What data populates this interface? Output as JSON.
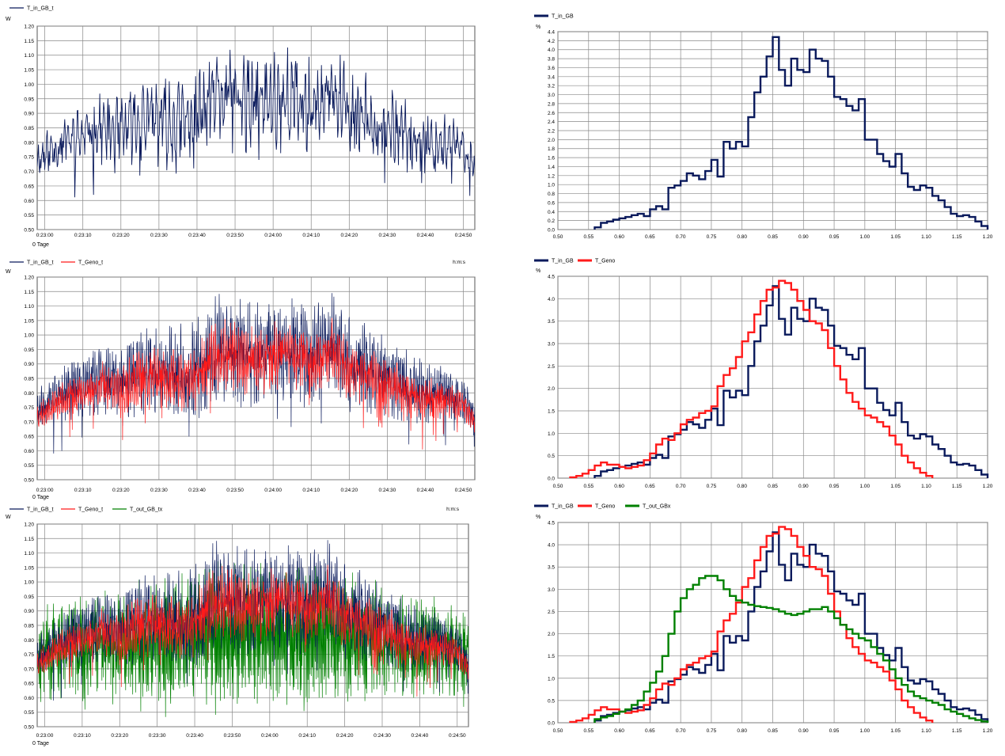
{
  "chart_data": [
    {
      "type": "line",
      "panel": "ts1",
      "ylabel": "W",
      "xlabel": "h:m:s",
      "xlabel_extra": "0 Tage",
      "ylim": [
        0.5,
        1.2
      ],
      "yticks": [
        "0.50",
        "0.55",
        "0.60",
        "0.65",
        "0.70",
        "0.75",
        "0.80",
        "0.85",
        "0.90",
        "0.95",
        "1.00",
        "1.05",
        "1.10",
        "1.15",
        "1.20"
      ],
      "xticks": [
        "0:23:00",
        "0:23:10",
        "0:23:20",
        "0:23:30",
        "0:23:40",
        "0:23:50",
        "0:24:00",
        "0:24:10",
        "0:24:20",
        "0:24:30",
        "0:24:40",
        "0:24:50"
      ],
      "x_range_seconds": [
        1378,
        1493
      ],
      "grid": true,
      "legend_position": "top-left",
      "series": [
        {
          "name": "T_in_GB_t",
          "color": "#0a1a5c"
        }
      ]
    },
    {
      "type": "histogram",
      "panel": "h1",
      "ylabel": "%",
      "xlim": [
        0.5,
        1.2
      ],
      "ylim": [
        0.0,
        4.4
      ],
      "xticks": [
        "0.50",
        "0.55",
        "0.60",
        "0.65",
        "0.70",
        "0.75",
        "0.80",
        "0.85",
        "0.90",
        "0.95",
        "1.00",
        "1.05",
        "1.10",
        "1.15",
        "1.20"
      ],
      "yticks": [
        "0.0",
        "0.2",
        "0.4",
        "0.6",
        "0.8",
        "1.0",
        "1.2",
        "1.4",
        "1.6",
        "1.8",
        "2.0",
        "2.2",
        "2.4",
        "2.6",
        "2.8",
        "3.0",
        "3.2",
        "3.4",
        "3.6",
        "3.8",
        "4.0",
        "4.2",
        "4.4"
      ],
      "grid": true,
      "legend_position": "top-left",
      "series": [
        {
          "name": "T_in_GB",
          "color": "#0a1a5c",
          "x": [
            0.56,
            0.57,
            0.58,
            0.59,
            0.6,
            0.61,
            0.62,
            0.63,
            0.64,
            0.65,
            0.66,
            0.67,
            0.68,
            0.69,
            0.7,
            0.71,
            0.72,
            0.73,
            0.74,
            0.75,
            0.76,
            0.77,
            0.78,
            0.79,
            0.8,
            0.81,
            0.82,
            0.83,
            0.84,
            0.85,
            0.86,
            0.87,
            0.88,
            0.89,
            0.9,
            0.91,
            0.92,
            0.93,
            0.94,
            0.95,
            0.96,
            0.97,
            0.98,
            0.99,
            1.0,
            1.01,
            1.02,
            1.03,
            1.04,
            1.05,
            1.06,
            1.07,
            1.08,
            1.09,
            1.1,
            1.11,
            1.12,
            1.13,
            1.14,
            1.15,
            1.16,
            1.17,
            1.18,
            1.19
          ],
          "values": [
            0.05,
            0.15,
            0.18,
            0.22,
            0.25,
            0.28,
            0.32,
            0.35,
            0.3,
            0.45,
            0.52,
            0.45,
            0.93,
            0.98,
            1.08,
            1.25,
            1.2,
            1.12,
            1.3,
            1.55,
            1.18,
            1.95,
            1.8,
            1.95,
            1.85,
            2.5,
            3.05,
            3.4,
            3.85,
            4.28,
            3.55,
            3.2,
            3.8,
            3.55,
            3.5,
            4.0,
            3.8,
            3.75,
            3.4,
            2.95,
            2.9,
            2.75,
            2.65,
            2.9,
            2.0,
            2.0,
            1.68,
            1.52,
            1.4,
            1.68,
            1.25,
            0.95,
            0.88,
            0.98,
            0.93,
            0.75,
            0.65,
            0.5,
            0.35,
            0.3,
            0.32,
            0.28,
            0.18,
            0.08
          ]
        }
      ]
    },
    {
      "type": "line",
      "panel": "ts2",
      "ylabel": "W",
      "xlabel": "h:m:s",
      "xlabel_extra": "0 Tage",
      "ylim": [
        0.5,
        1.2
      ],
      "yticks": [
        "0.50",
        "0.55",
        "0.60",
        "0.65",
        "0.70",
        "0.75",
        "0.80",
        "0.85",
        "0.90",
        "0.95",
        "1.00",
        "1.05",
        "1.10",
        "1.15",
        "1.20"
      ],
      "xticks": [
        "0:23:00",
        "0:23:10",
        "0:23:20",
        "0:23:30",
        "0:23:40",
        "0:23:50",
        "0:24:00",
        "0:24:10",
        "0:24:20",
        "0:24:30",
        "0:24:40",
        "0:24:50"
      ],
      "x_range_seconds": [
        1378,
        1493
      ],
      "grid": true,
      "legend_position": "top-left",
      "series": [
        {
          "name": "T_in_GB_t",
          "color": "#0a1a5c"
        },
        {
          "name": "T_Geno_t",
          "color": "#ff1a1a"
        }
      ]
    },
    {
      "type": "histogram",
      "panel": "h2",
      "ylabel": "%",
      "xlim": [
        0.5,
        1.2
      ],
      "ylim": [
        0.0,
        4.5
      ],
      "xticks": [
        "0.50",
        "0.55",
        "0.60",
        "0.65",
        "0.70",
        "0.75",
        "0.80",
        "0.85",
        "0.90",
        "0.95",
        "1.00",
        "1.05",
        "1.10",
        "1.15",
        "1.20"
      ],
      "yticks": [
        "0.0",
        "0.5",
        "1.0",
        "1.5",
        "2.0",
        "2.5",
        "3.0",
        "3.5",
        "4.0",
        "4.5"
      ],
      "grid": true,
      "legend_position": "top-left",
      "series": [
        {
          "name": "T_in_GB",
          "color": "#0a1a5c",
          "x": [
            0.56,
            0.57,
            0.58,
            0.59,
            0.6,
            0.61,
            0.62,
            0.63,
            0.64,
            0.65,
            0.66,
            0.67,
            0.68,
            0.69,
            0.7,
            0.71,
            0.72,
            0.73,
            0.74,
            0.75,
            0.76,
            0.77,
            0.78,
            0.79,
            0.8,
            0.81,
            0.82,
            0.83,
            0.84,
            0.85,
            0.86,
            0.87,
            0.88,
            0.89,
            0.9,
            0.91,
            0.92,
            0.93,
            0.94,
            0.95,
            0.96,
            0.97,
            0.98,
            0.99,
            1.0,
            1.01,
            1.02,
            1.03,
            1.04,
            1.05,
            1.06,
            1.07,
            1.08,
            1.09,
            1.1,
            1.11,
            1.12,
            1.13,
            1.14,
            1.15,
            1.16,
            1.17,
            1.18,
            1.19
          ],
          "values": [
            0.05,
            0.15,
            0.18,
            0.22,
            0.25,
            0.28,
            0.32,
            0.35,
            0.3,
            0.45,
            0.52,
            0.45,
            0.93,
            0.98,
            1.08,
            1.25,
            1.2,
            1.12,
            1.3,
            1.55,
            1.18,
            1.95,
            1.8,
            1.95,
            1.85,
            2.5,
            3.05,
            3.4,
            3.85,
            4.28,
            3.55,
            3.2,
            3.8,
            3.55,
            3.5,
            4.0,
            3.8,
            3.75,
            3.4,
            2.95,
            2.9,
            2.75,
            2.65,
            2.9,
            2.0,
            2.0,
            1.68,
            1.52,
            1.4,
            1.68,
            1.25,
            0.95,
            0.88,
            0.98,
            0.93,
            0.75,
            0.65,
            0.5,
            0.35,
            0.3,
            0.32,
            0.28,
            0.18,
            0.08
          ]
        },
        {
          "name": "T_Geno",
          "color": "#ff1a1a",
          "x": [
            0.52,
            0.53,
            0.54,
            0.55,
            0.56,
            0.57,
            0.58,
            0.59,
            0.6,
            0.61,
            0.62,
            0.63,
            0.64,
            0.65,
            0.66,
            0.67,
            0.68,
            0.69,
            0.7,
            0.71,
            0.72,
            0.73,
            0.74,
            0.75,
            0.76,
            0.77,
            0.78,
            0.79,
            0.8,
            0.81,
            0.82,
            0.83,
            0.84,
            0.85,
            0.86,
            0.87,
            0.88,
            0.89,
            0.9,
            0.91,
            0.92,
            0.93,
            0.94,
            0.95,
            0.96,
            0.97,
            0.98,
            0.99,
            1.0,
            1.01,
            1.02,
            1.03,
            1.04,
            1.05,
            1.06,
            1.07,
            1.08,
            1.09,
            1.1
          ],
          "values": [
            0.02,
            0.05,
            0.1,
            0.18,
            0.28,
            0.35,
            0.3,
            0.3,
            0.25,
            0.22,
            0.25,
            0.28,
            0.4,
            0.55,
            0.75,
            0.88,
            0.85,
            1.0,
            1.2,
            1.3,
            1.35,
            1.45,
            1.5,
            1.6,
            2.05,
            2.3,
            2.45,
            2.7,
            3.05,
            3.25,
            3.65,
            3.95,
            4.2,
            4.25,
            4.4,
            4.35,
            4.2,
            3.95,
            3.75,
            3.5,
            3.45,
            3.3,
            2.9,
            2.5,
            2.2,
            1.9,
            1.7,
            1.55,
            1.4,
            1.35,
            1.25,
            1.15,
            0.95,
            0.75,
            0.5,
            0.35,
            0.22,
            0.12,
            0.05
          ]
        }
      ]
    },
    {
      "type": "line",
      "panel": "ts3",
      "ylabel": "W",
      "xlabel": "h:m:s",
      "xlabel_extra": "0 Tage",
      "ylim": [
        0.5,
        1.2
      ],
      "yticks": [
        "0.50",
        "0.55",
        "0.60",
        "0.65",
        "0.70",
        "0.75",
        "0.80",
        "0.85",
        "0.90",
        "0.95",
        "1.00",
        "1.05",
        "1.10",
        "1.15",
        "1.20"
      ],
      "xticks": [
        "0:23:00",
        "0:23:10",
        "0:23:20",
        "0:23:30",
        "0:23:40",
        "0:23:50",
        "0:24:00",
        "0:24:10",
        "0:24:20",
        "0:24:30",
        "0:24:40",
        "0:24:50"
      ],
      "x_range_seconds": [
        1378,
        1493
      ],
      "grid": true,
      "legend_position": "top-left",
      "series": [
        {
          "name": "T_in_GB_t",
          "color": "#0a1a5c"
        },
        {
          "name": "T_Geno_t",
          "color": "#ff1a1a"
        },
        {
          "name": "T_out_GB_tx",
          "color": "#008000"
        }
      ]
    },
    {
      "type": "histogram",
      "panel": "h3",
      "ylabel": "%",
      "xlim": [
        0.5,
        1.2
      ],
      "ylim": [
        0.0,
        4.5
      ],
      "xticks": [
        "0.50",
        "0.55",
        "0.60",
        "0.65",
        "0.70",
        "0.75",
        "0.80",
        "0.85",
        "0.90",
        "0.95",
        "1.00",
        "1.05",
        "1.10",
        "1.15",
        "1.20"
      ],
      "yticks": [
        "0.0",
        "0.5",
        "1.0",
        "1.5",
        "2.0",
        "2.5",
        "3.0",
        "3.5",
        "4.0",
        "4.5"
      ],
      "grid": true,
      "legend_position": "top-left",
      "series": [
        {
          "name": "T_in_GB",
          "color": "#0a1a5c",
          "x": [
            0.56,
            0.57,
            0.58,
            0.59,
            0.6,
            0.61,
            0.62,
            0.63,
            0.64,
            0.65,
            0.66,
            0.67,
            0.68,
            0.69,
            0.7,
            0.71,
            0.72,
            0.73,
            0.74,
            0.75,
            0.76,
            0.77,
            0.78,
            0.79,
            0.8,
            0.81,
            0.82,
            0.83,
            0.84,
            0.85,
            0.86,
            0.87,
            0.88,
            0.89,
            0.9,
            0.91,
            0.92,
            0.93,
            0.94,
            0.95,
            0.96,
            0.97,
            0.98,
            0.99,
            1.0,
            1.01,
            1.02,
            1.03,
            1.04,
            1.05,
            1.06,
            1.07,
            1.08,
            1.09,
            1.1,
            1.11,
            1.12,
            1.13,
            1.14,
            1.15,
            1.16,
            1.17,
            1.18,
            1.19
          ],
          "values": [
            0.05,
            0.15,
            0.18,
            0.22,
            0.25,
            0.28,
            0.32,
            0.35,
            0.3,
            0.45,
            0.52,
            0.45,
            0.93,
            0.98,
            1.08,
            1.25,
            1.2,
            1.12,
            1.3,
            1.55,
            1.18,
            1.95,
            1.8,
            1.95,
            1.85,
            2.5,
            3.05,
            3.4,
            3.85,
            4.28,
            3.55,
            3.2,
            3.8,
            3.55,
            3.5,
            4.0,
            3.8,
            3.75,
            3.4,
            2.95,
            2.9,
            2.75,
            2.65,
            2.9,
            2.0,
            2.0,
            1.68,
            1.52,
            1.4,
            1.68,
            1.25,
            0.95,
            0.88,
            0.98,
            0.93,
            0.75,
            0.65,
            0.5,
            0.35,
            0.3,
            0.32,
            0.28,
            0.18,
            0.08
          ]
        },
        {
          "name": "T_Geno",
          "color": "#ff1a1a",
          "x": [
            0.52,
            0.53,
            0.54,
            0.55,
            0.56,
            0.57,
            0.58,
            0.59,
            0.6,
            0.61,
            0.62,
            0.63,
            0.64,
            0.65,
            0.66,
            0.67,
            0.68,
            0.69,
            0.7,
            0.71,
            0.72,
            0.73,
            0.74,
            0.75,
            0.76,
            0.77,
            0.78,
            0.79,
            0.8,
            0.81,
            0.82,
            0.83,
            0.84,
            0.85,
            0.86,
            0.87,
            0.88,
            0.89,
            0.9,
            0.91,
            0.92,
            0.93,
            0.94,
            0.95,
            0.96,
            0.97,
            0.98,
            0.99,
            1.0,
            1.01,
            1.02,
            1.03,
            1.04,
            1.05,
            1.06,
            1.07,
            1.08,
            1.09,
            1.1
          ],
          "values": [
            0.02,
            0.05,
            0.1,
            0.18,
            0.28,
            0.35,
            0.3,
            0.3,
            0.25,
            0.22,
            0.25,
            0.28,
            0.4,
            0.55,
            0.75,
            0.88,
            0.85,
            1.0,
            1.2,
            1.3,
            1.35,
            1.45,
            1.5,
            1.6,
            2.05,
            2.3,
            2.45,
            2.7,
            3.05,
            3.25,
            3.65,
            3.95,
            4.2,
            4.25,
            4.4,
            4.35,
            4.2,
            3.95,
            3.75,
            3.5,
            3.45,
            3.3,
            2.9,
            2.5,
            2.2,
            1.9,
            1.7,
            1.55,
            1.4,
            1.35,
            1.25,
            1.15,
            0.95,
            0.75,
            0.5,
            0.35,
            0.22,
            0.12,
            0.05
          ]
        },
        {
          "name": "T_out_GBx",
          "color": "#008000",
          "x": [
            0.56,
            0.57,
            0.58,
            0.59,
            0.6,
            0.61,
            0.62,
            0.63,
            0.64,
            0.65,
            0.66,
            0.67,
            0.68,
            0.69,
            0.7,
            0.71,
            0.72,
            0.73,
            0.74,
            0.75,
            0.76,
            0.77,
            0.78,
            0.79,
            0.8,
            0.81,
            0.82,
            0.83,
            0.84,
            0.85,
            0.86,
            0.87,
            0.88,
            0.89,
            0.9,
            0.91,
            0.92,
            0.93,
            0.94,
            0.95,
            0.96,
            0.97,
            0.98,
            0.99,
            1.0,
            1.01,
            1.02,
            1.03,
            1.04,
            1.05,
            1.06,
            1.07,
            1.08,
            1.09,
            1.1,
            1.11,
            1.12,
            1.13,
            1.14,
            1.15,
            1.16,
            1.17,
            1.18,
            1.19
          ],
          "values": [
            0.08,
            0.12,
            0.15,
            0.2,
            0.25,
            0.3,
            0.4,
            0.5,
            0.7,
            0.9,
            1.15,
            1.5,
            2.0,
            2.5,
            2.8,
            3.0,
            3.1,
            3.25,
            3.3,
            3.3,
            3.2,
            3.0,
            2.85,
            2.75,
            2.7,
            2.65,
            2.62,
            2.6,
            2.58,
            2.55,
            2.5,
            2.45,
            2.42,
            2.45,
            2.5,
            2.55,
            2.55,
            2.6,
            2.5,
            2.35,
            2.2,
            2.1,
            2.0,
            1.9,
            1.85,
            1.7,
            1.55,
            1.4,
            1.2,
            1.0,
            0.85,
            0.7,
            0.6,
            0.55,
            0.5,
            0.45,
            0.4,
            0.3,
            0.25,
            0.2,
            0.15,
            0.1,
            0.06,
            0.03
          ]
        }
      ]
    }
  ]
}
